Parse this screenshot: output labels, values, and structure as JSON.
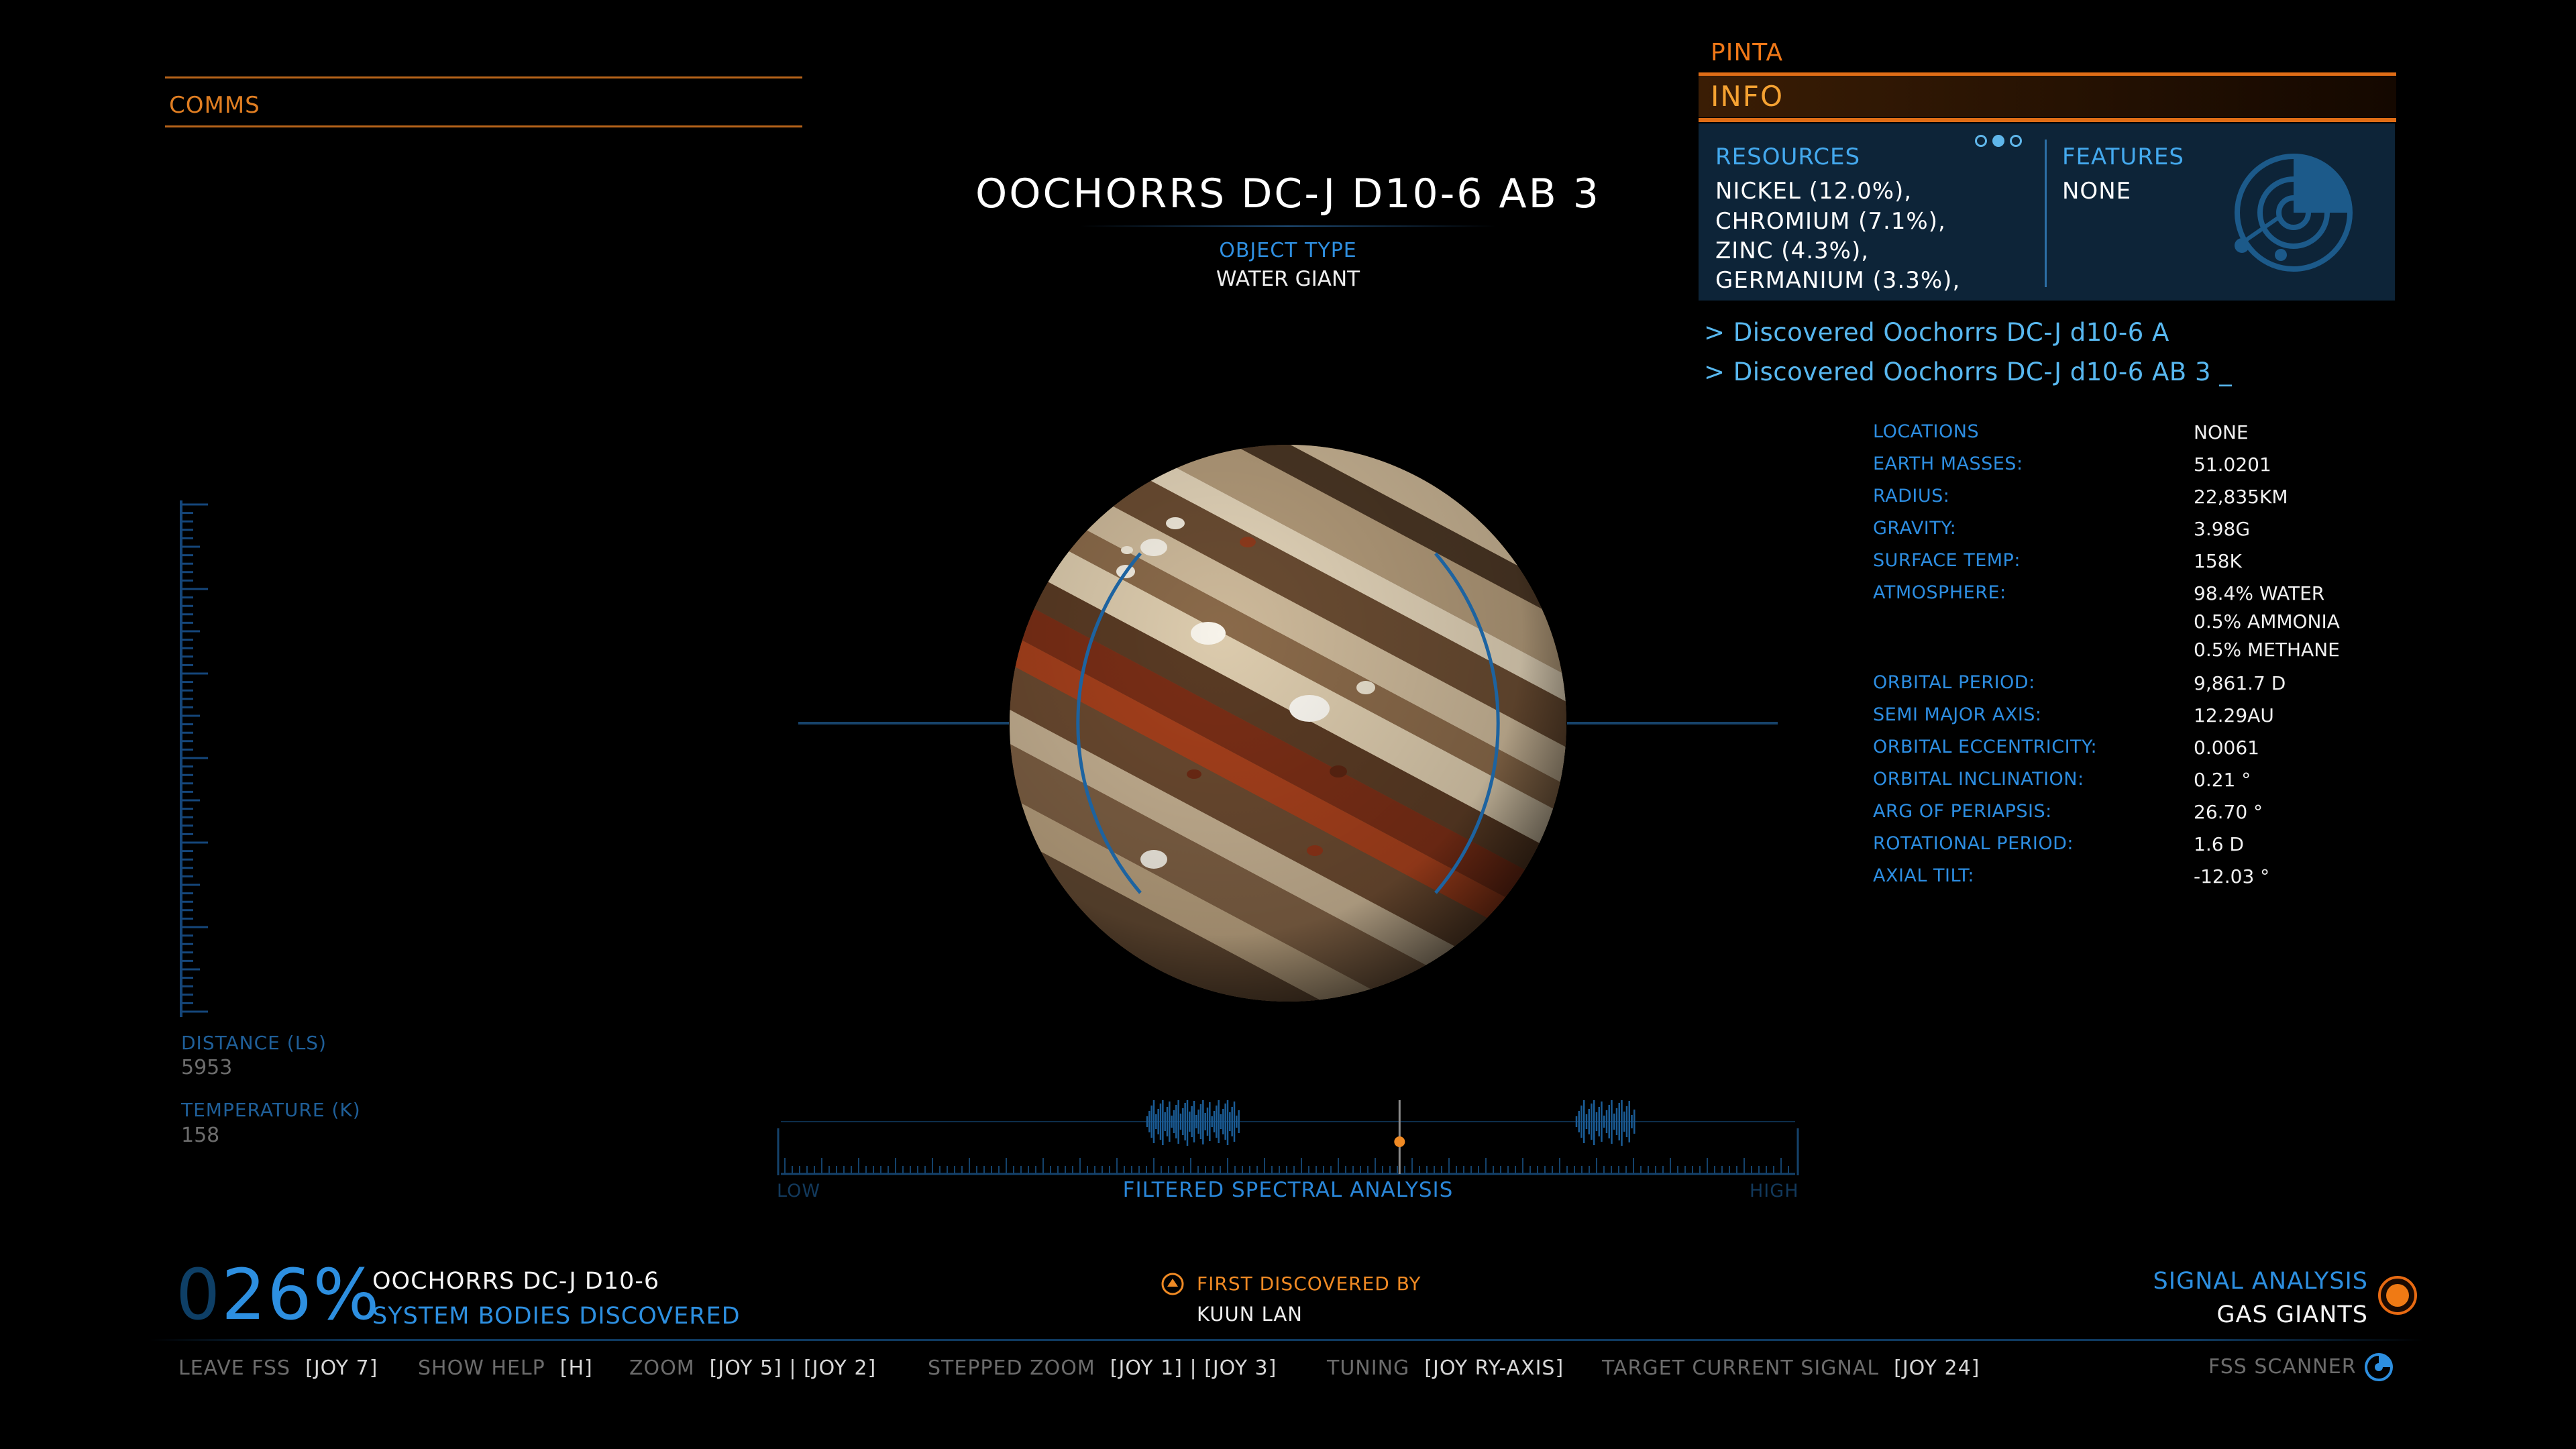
{
  "comms": {
    "label": "COMMS"
  },
  "body": {
    "title": "OOCHORRS DC-J D10-6 AB 3",
    "object_type_label": "OBJECT TYPE",
    "object_type": "WATER GIANT"
  },
  "panel": {
    "ship": "PINTA",
    "header": "INFO",
    "resources_label": "RESOURCES",
    "resources": [
      "NICKEL (12.0%),",
      "CHROMIUM (7.1%),",
      "ZINC (4.3%),",
      "GERMANIUM (3.3%),"
    ],
    "features_label": "FEATURES",
    "features_value": "NONE",
    "feature_icon": "planet-scan-icon"
  },
  "discoveries": [
    "> Discovered Oochorrs DC-J d10-6 A",
    "> Discovered Oochorrs DC-J d10-6 AB 3  _"
  ],
  "stats": [
    {
      "label": "LOCATIONS",
      "value": "NONE"
    },
    {
      "label": "EARTH MASSES:",
      "value": "51.0201"
    },
    {
      "label": "RADIUS:",
      "value": "22,835KM"
    },
    {
      "label": "GRAVITY:",
      "value": "3.98G"
    },
    {
      "label": "SURFACE TEMP:",
      "value": "158K"
    },
    {
      "label": "ATMOSPHERE:",
      "value": "98.4% WATER"
    },
    {
      "label": "",
      "value": "0.5% AMMONIA"
    },
    {
      "label": "",
      "value": "0.5% METHANE"
    },
    {
      "label": "ORBITAL PERIOD:",
      "value": "9,861.7 D"
    },
    {
      "label": "SEMI MAJOR AXIS:",
      "value": "12.29AU"
    },
    {
      "label": "ORBITAL ECCENTRICITY:",
      "value": "0.0061"
    },
    {
      "label": "ORBITAL INCLINATION:",
      "value": "0.21 °"
    },
    {
      "label": "ARG OF PERIAPSIS:",
      "value": "26.70 °"
    },
    {
      "label": "ROTATIONAL PERIOD:",
      "value": "1.6 D"
    },
    {
      "label": "AXIAL TILT:",
      "value": "-12.03 °"
    }
  ],
  "readouts": {
    "distance_label": "DISTANCE (LS)",
    "distance_value": "5953",
    "temperature_label": "TEMPERATURE (K)",
    "temperature_value": "158"
  },
  "spectral": {
    "low": "LOW",
    "high": "HIGH",
    "title": "FILTERED SPECTRAL ANALYSIS",
    "tuner_position": 0.61
  },
  "progress": {
    "ghost_digit": "0",
    "percent": "26%",
    "system": "OOCHORRS DC-J D10-6",
    "subtitle": "SYSTEM BODIES DISCOVERED"
  },
  "first_discovered": {
    "label": "FIRST DISCOVERED BY",
    "value": "KUUN LAN"
  },
  "signal": {
    "label": "SIGNAL ANALYSIS",
    "value": "GAS GIANTS"
  },
  "hints": [
    {
      "key": "LEAVE FSS",
      "bind": "[JOY 7]"
    },
    {
      "key": "SHOW HELP",
      "bind": "[H]"
    },
    {
      "key": "ZOOM",
      "bind": "[JOY 5] | [JOY 2]"
    },
    {
      "key": "STEPPED ZOOM",
      "bind": "[JOY 1] | [JOY 3]"
    },
    {
      "key": "TUNING",
      "bind": "[JOY RY-AXIS]"
    },
    {
      "key": "TARGET CURRENT SIGNAL",
      "bind": "[JOY 24]"
    }
  ],
  "fss": {
    "label": "FSS SCANNER"
  },
  "colors": {
    "accent_orange": "#e06d16",
    "hud_blue": "#2d8fe0",
    "panel_bg": "#0d2438"
  }
}
